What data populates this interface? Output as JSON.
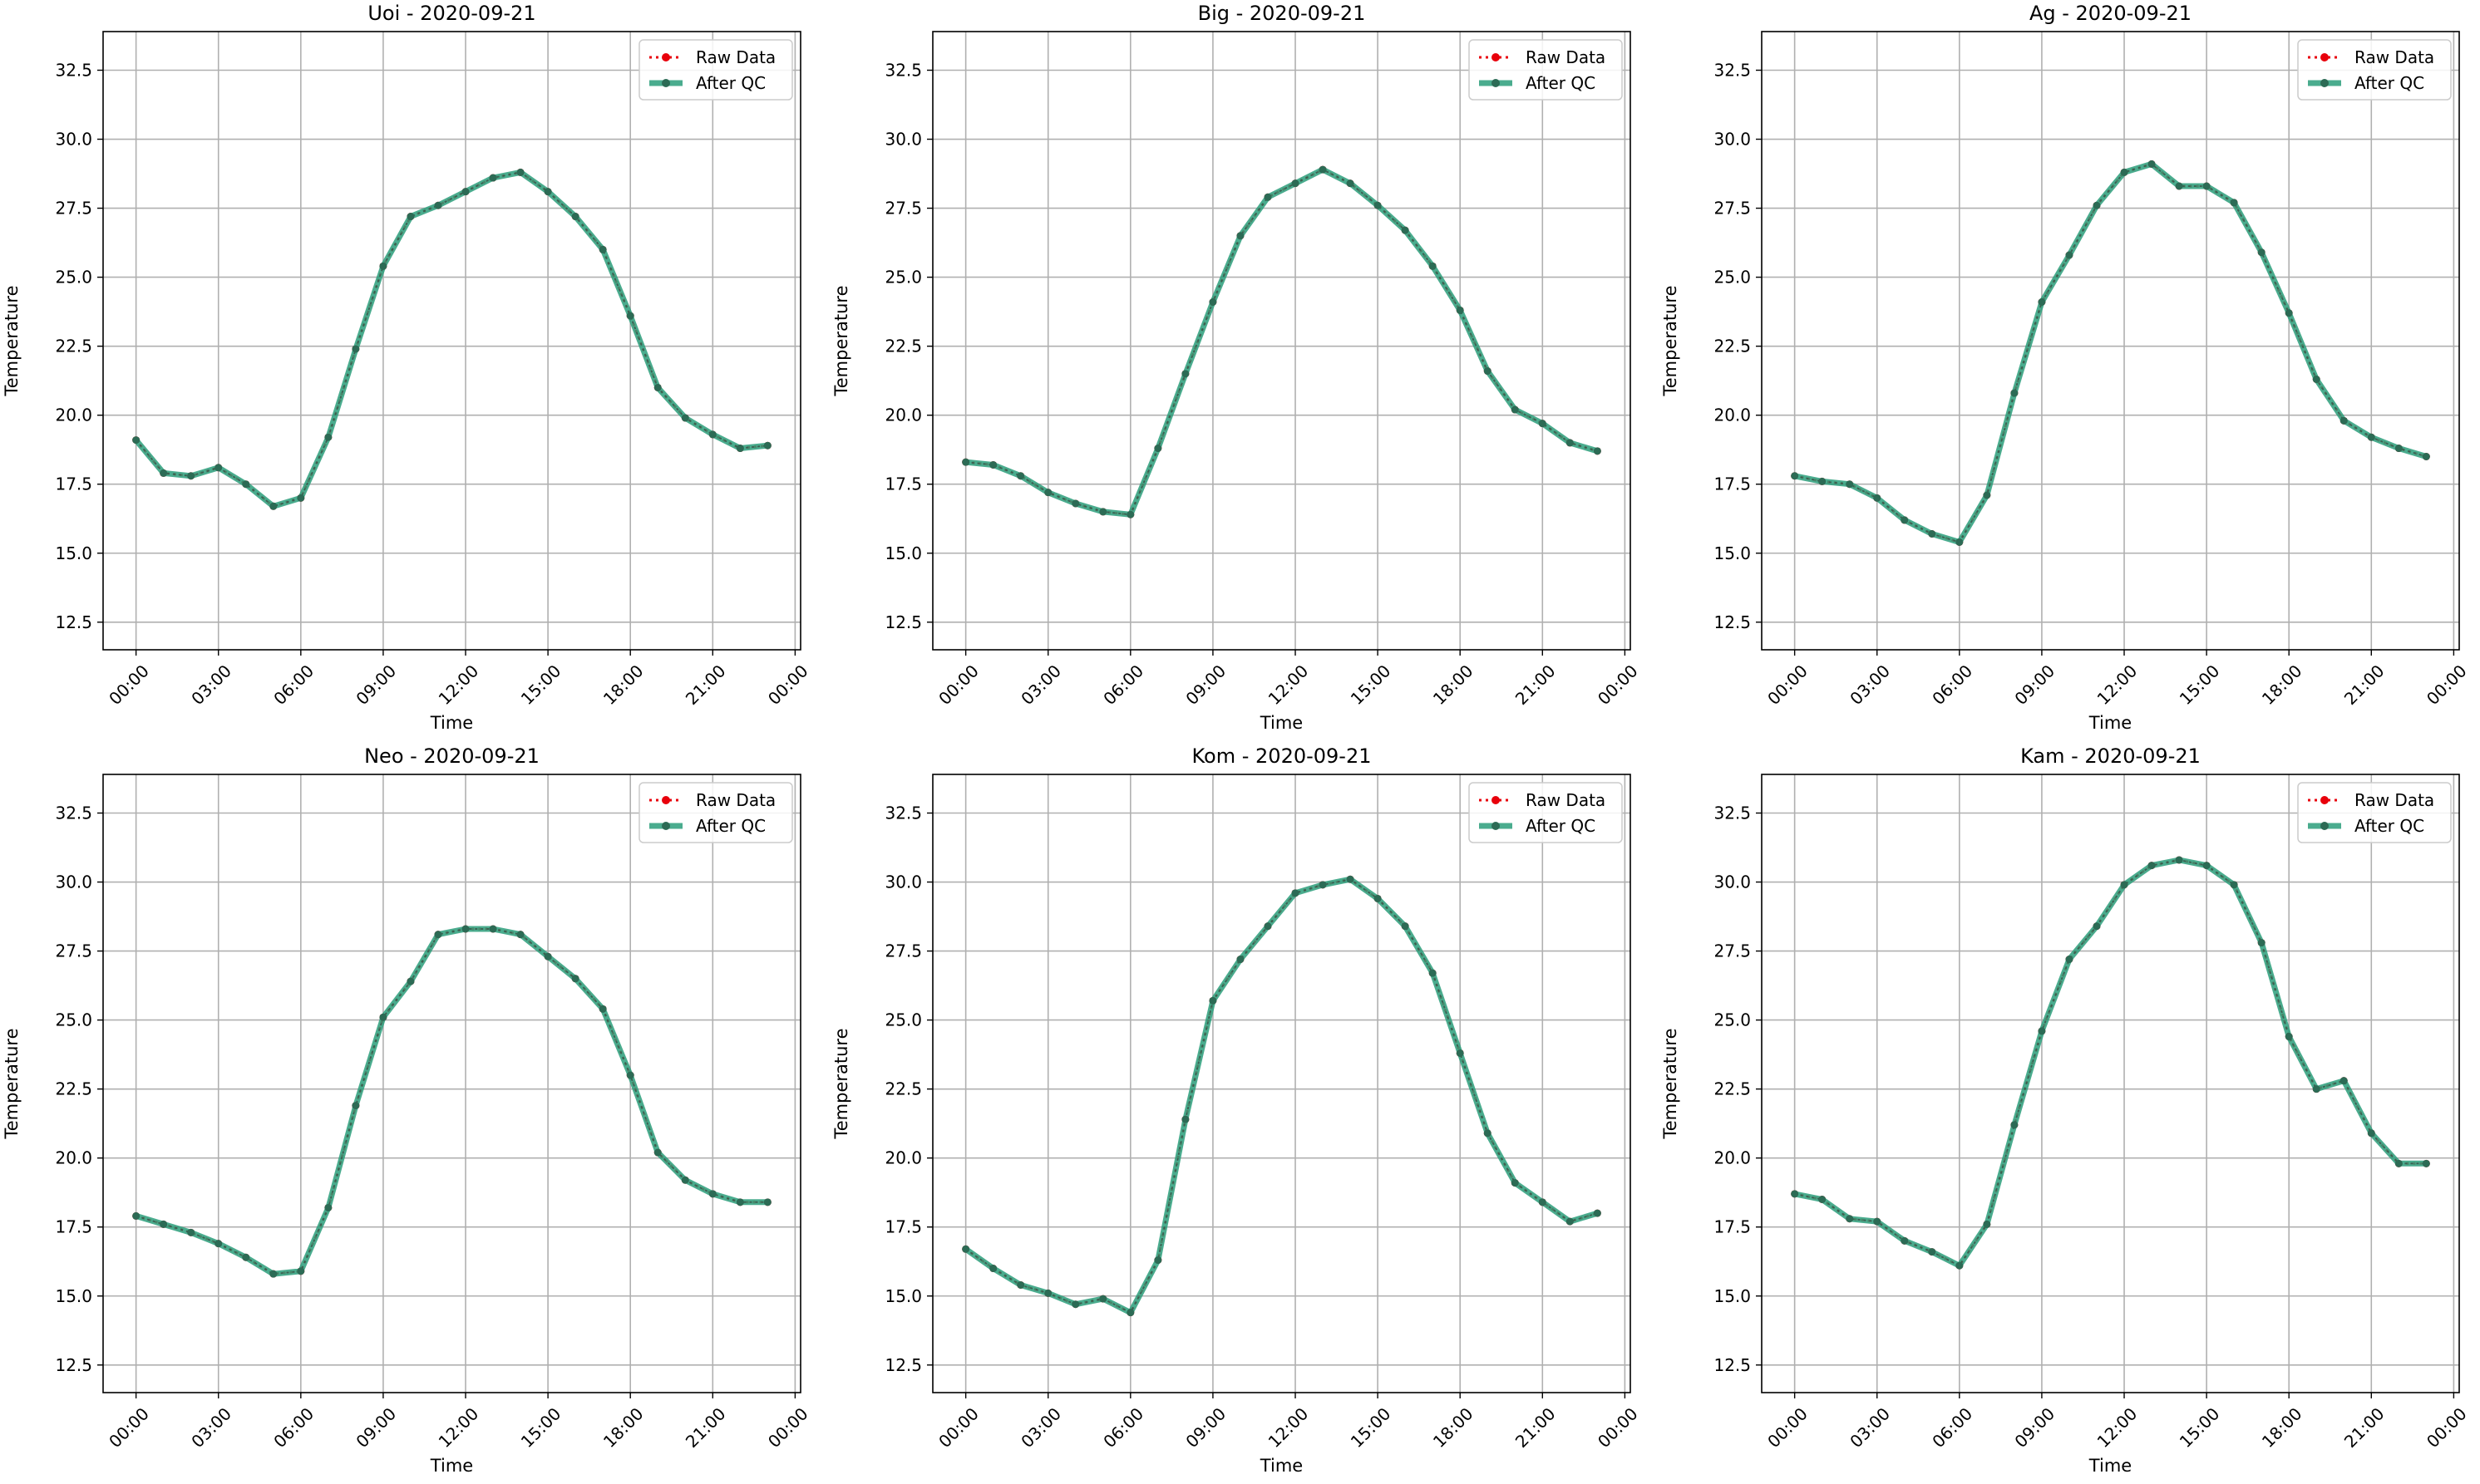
{
  "chart_data": [
    {
      "type": "line",
      "title": "Uoi - 2020-09-21",
      "xlabel": "Time",
      "ylabel": "Temperature",
      "x_tick_labels": [
        "00:00",
        "03:00",
        "06:00",
        "09:00",
        "12:00",
        "15:00",
        "18:00",
        "21:00",
        "00:00"
      ],
      "y_tick_labels": [
        "12.5",
        "15.0",
        "17.5",
        "20.0",
        "22.5",
        "25.0",
        "27.5",
        "30.0",
        "32.5"
      ],
      "xlim_hours": [
        -1.2,
        24.2
      ],
      "ylim": [
        11.5,
        33.9
      ],
      "grid": true,
      "legend_position": "top-right",
      "x_hours": [
        0,
        1,
        2,
        3,
        4,
        5,
        6,
        7,
        8,
        9,
        10,
        11,
        12,
        13,
        14,
        15,
        16,
        17,
        18,
        19,
        20,
        21,
        22,
        23
      ],
      "series": [
        {
          "name": "Raw Data",
          "color": "#e8000b",
          "style": "dotted",
          "values": [
            19.1,
            17.9,
            17.8,
            18.1,
            17.5,
            16.7,
            17.0,
            19.2,
            22.4,
            25.4,
            27.2,
            27.6,
            28.1,
            28.6,
            28.8,
            28.1,
            27.2,
            26.0,
            23.6,
            21.0,
            19.9,
            19.3,
            18.8,
            18.9
          ]
        },
        {
          "name": "After QC",
          "color": "#2a9d7a",
          "style": "solid",
          "values": [
            19.1,
            17.9,
            17.8,
            18.1,
            17.5,
            16.7,
            17.0,
            19.2,
            22.4,
            25.4,
            27.2,
            27.6,
            28.1,
            28.6,
            28.8,
            28.1,
            27.2,
            26.0,
            23.6,
            21.0,
            19.9,
            19.3,
            18.8,
            18.9
          ]
        }
      ]
    },
    {
      "type": "line",
      "title": "Big - 2020-09-21",
      "xlabel": "Time",
      "ylabel": "Temperature",
      "x_tick_labels": [
        "00:00",
        "03:00",
        "06:00",
        "09:00",
        "12:00",
        "15:00",
        "18:00",
        "21:00",
        "00:00"
      ],
      "y_tick_labels": [
        "12.5",
        "15.0",
        "17.5",
        "20.0",
        "22.5",
        "25.0",
        "27.5",
        "30.0",
        "32.5"
      ],
      "xlim_hours": [
        -1.2,
        24.2
      ],
      "ylim": [
        11.5,
        33.9
      ],
      "grid": true,
      "legend_position": "top-right",
      "x_hours": [
        0,
        1,
        2,
        3,
        4,
        5,
        6,
        7,
        8,
        9,
        10,
        11,
        12,
        13,
        14,
        15,
        16,
        17,
        18,
        19,
        20,
        21,
        22,
        23
      ],
      "series": [
        {
          "name": "Raw Data",
          "color": "#e8000b",
          "style": "dotted",
          "values": [
            18.3,
            18.2,
            17.8,
            17.2,
            16.8,
            16.5,
            16.4,
            18.8,
            21.5,
            24.1,
            26.5,
            27.9,
            28.4,
            28.9,
            28.4,
            27.6,
            26.7,
            25.4,
            23.8,
            21.6,
            20.2,
            19.7,
            19.0,
            18.7
          ]
        },
        {
          "name": "After QC",
          "color": "#2a9d7a",
          "style": "solid",
          "values": [
            18.3,
            18.2,
            17.8,
            17.2,
            16.8,
            16.5,
            16.4,
            18.8,
            21.5,
            24.1,
            26.5,
            27.9,
            28.4,
            28.9,
            28.4,
            27.6,
            26.7,
            25.4,
            23.8,
            21.6,
            20.2,
            19.7,
            19.0,
            18.7
          ]
        }
      ]
    },
    {
      "type": "line",
      "title": "Ag - 2020-09-21",
      "xlabel": "Time",
      "ylabel": "Temperature",
      "x_tick_labels": [
        "00:00",
        "03:00",
        "06:00",
        "09:00",
        "12:00",
        "15:00",
        "18:00",
        "21:00",
        "00:00"
      ],
      "y_tick_labels": [
        "12.5",
        "15.0",
        "17.5",
        "20.0",
        "22.5",
        "25.0",
        "27.5",
        "30.0",
        "32.5"
      ],
      "xlim_hours": [
        -1.2,
        24.2
      ],
      "ylim": [
        11.5,
        33.9
      ],
      "grid": true,
      "legend_position": "top-right",
      "x_hours": [
        0,
        1,
        2,
        3,
        4,
        5,
        6,
        7,
        8,
        9,
        10,
        11,
        12,
        13,
        14,
        15,
        16,
        17,
        18,
        19,
        20,
        21,
        22,
        23
      ],
      "series": [
        {
          "name": "Raw Data",
          "color": "#e8000b",
          "style": "dotted",
          "values": [
            17.8,
            17.6,
            17.5,
            17.0,
            16.2,
            15.7,
            15.4,
            17.1,
            20.8,
            24.1,
            25.8,
            27.6,
            28.8,
            29.1,
            28.3,
            28.3,
            27.7,
            25.9,
            23.7,
            21.3,
            19.8,
            19.2,
            18.8,
            18.5
          ]
        },
        {
          "name": "After QC",
          "color": "#2a9d7a",
          "style": "solid",
          "values": [
            17.8,
            17.6,
            17.5,
            17.0,
            16.2,
            15.7,
            15.4,
            17.1,
            20.8,
            24.1,
            25.8,
            27.6,
            28.8,
            29.1,
            28.3,
            28.3,
            27.7,
            25.9,
            23.7,
            21.3,
            19.8,
            19.2,
            18.8,
            18.5
          ]
        }
      ]
    },
    {
      "type": "line",
      "title": "Neo - 2020-09-21",
      "xlabel": "Time",
      "ylabel": "Temperature",
      "x_tick_labels": [
        "00:00",
        "03:00",
        "06:00",
        "09:00",
        "12:00",
        "15:00",
        "18:00",
        "21:00",
        "00:00"
      ],
      "y_tick_labels": [
        "12.5",
        "15.0",
        "17.5",
        "20.0",
        "22.5",
        "25.0",
        "27.5",
        "30.0",
        "32.5"
      ],
      "xlim_hours": [
        -1.2,
        24.2
      ],
      "ylim": [
        11.5,
        33.9
      ],
      "grid": true,
      "legend_position": "top-right",
      "x_hours": [
        0,
        1,
        2,
        3,
        4,
        5,
        6,
        7,
        8,
        9,
        10,
        11,
        12,
        13,
        14,
        15,
        16,
        17,
        18,
        19,
        20,
        21,
        22,
        23
      ],
      "series": [
        {
          "name": "Raw Data",
          "color": "#e8000b",
          "style": "dotted",
          "values": [
            17.9,
            17.6,
            17.3,
            16.9,
            16.4,
            15.8,
            15.9,
            18.2,
            21.9,
            25.1,
            26.4,
            28.1,
            28.3,
            28.3,
            28.1,
            27.3,
            26.5,
            25.4,
            23.0,
            20.2,
            19.2,
            18.7,
            18.4,
            18.4
          ]
        },
        {
          "name": "After QC",
          "color": "#2a9d7a",
          "style": "solid",
          "values": [
            17.9,
            17.6,
            17.3,
            16.9,
            16.4,
            15.8,
            15.9,
            18.2,
            21.9,
            25.1,
            26.4,
            28.1,
            28.3,
            28.3,
            28.1,
            27.3,
            26.5,
            25.4,
            23.0,
            20.2,
            19.2,
            18.7,
            18.4,
            18.4
          ]
        }
      ]
    },
    {
      "type": "line",
      "title": "Kom - 2020-09-21",
      "xlabel": "Time",
      "ylabel": "Temperature",
      "x_tick_labels": [
        "00:00",
        "03:00",
        "06:00",
        "09:00",
        "12:00",
        "15:00",
        "18:00",
        "21:00",
        "00:00"
      ],
      "y_tick_labels": [
        "12.5",
        "15.0",
        "17.5",
        "20.0",
        "22.5",
        "25.0",
        "27.5",
        "30.0",
        "32.5"
      ],
      "xlim_hours": [
        -1.2,
        24.2
      ],
      "ylim": [
        11.5,
        33.9
      ],
      "grid": true,
      "legend_position": "top-right",
      "x_hours": [
        0,
        1,
        2,
        3,
        4,
        5,
        6,
        7,
        8,
        9,
        10,
        11,
        12,
        13,
        14,
        15,
        16,
        17,
        18,
        19,
        20,
        21,
        22,
        23
      ],
      "series": [
        {
          "name": "Raw Data",
          "color": "#e8000b",
          "style": "dotted",
          "values": [
            16.7,
            16.0,
            15.4,
            15.1,
            14.7,
            14.9,
            14.4,
            16.3,
            21.4,
            25.7,
            27.2,
            28.4,
            29.6,
            29.9,
            30.1,
            29.4,
            28.4,
            26.7,
            23.8,
            20.9,
            19.1,
            18.4,
            17.7,
            18.0
          ]
        },
        {
          "name": "After QC",
          "color": "#2a9d7a",
          "style": "solid",
          "values": [
            16.7,
            16.0,
            15.4,
            15.1,
            14.7,
            14.9,
            14.4,
            16.3,
            21.4,
            25.7,
            27.2,
            28.4,
            29.6,
            29.9,
            30.1,
            29.4,
            28.4,
            26.7,
            23.8,
            20.9,
            19.1,
            18.4,
            17.7,
            18.0
          ]
        }
      ]
    },
    {
      "type": "line",
      "title": "Kam - 2020-09-21",
      "xlabel": "Time",
      "ylabel": "Temperature",
      "x_tick_labels": [
        "00:00",
        "03:00",
        "06:00",
        "09:00",
        "12:00",
        "15:00",
        "18:00",
        "21:00",
        "00:00"
      ],
      "y_tick_labels": [
        "12.5",
        "15.0",
        "17.5",
        "20.0",
        "22.5",
        "25.0",
        "27.5",
        "30.0",
        "32.5"
      ],
      "xlim_hours": [
        -1.2,
        24.2
      ],
      "ylim": [
        11.5,
        33.9
      ],
      "grid": true,
      "legend_position": "top-right",
      "x_hours": [
        0,
        1,
        2,
        3,
        4,
        5,
        6,
        7,
        8,
        9,
        10,
        11,
        12,
        13,
        14,
        15,
        16,
        17,
        18,
        19,
        20,
        21,
        22,
        23
      ],
      "series": [
        {
          "name": "Raw Data",
          "color": "#e8000b",
          "style": "dotted",
          "values": [
            18.7,
            18.5,
            17.8,
            17.7,
            17.0,
            16.6,
            16.1,
            17.6,
            21.2,
            24.6,
            27.2,
            28.4,
            29.9,
            30.6,
            30.8,
            30.6,
            29.9,
            27.8,
            24.4,
            22.5,
            22.8,
            20.9,
            19.8,
            19.8
          ]
        },
        {
          "name": "After QC",
          "color": "#2a9d7a",
          "style": "solid",
          "values": [
            18.7,
            18.5,
            17.8,
            17.7,
            17.0,
            16.6,
            16.1,
            17.6,
            21.2,
            24.6,
            27.2,
            28.4,
            29.9,
            30.6,
            30.8,
            30.6,
            29.9,
            27.8,
            24.4,
            22.5,
            22.8,
            20.9,
            19.8,
            19.8
          ]
        }
      ]
    }
  ]
}
